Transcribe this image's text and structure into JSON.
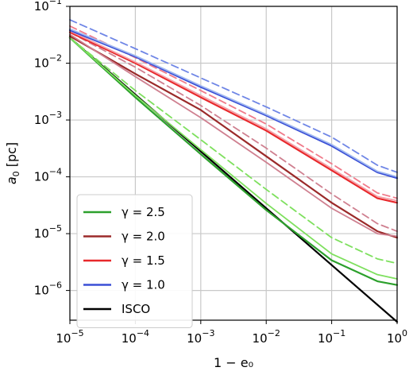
{
  "chart_data": {
    "type": "line",
    "xlabel": "1 − e₀",
    "ylabel_var": "a",
    "ylabel_sub": "0",
    "ylabel_unit": " [pc]",
    "xscale": "log",
    "yscale": "log",
    "xlim": [
      1e-05,
      1
    ],
    "ylim": [
      3e-07,
      0.1
    ],
    "grid": true,
    "legend_position": "lower-left",
    "x_ticks": [
      {
        "value": 1e-05,
        "base": "10",
        "exp": "−5"
      },
      {
        "value": 0.0001,
        "base": "10",
        "exp": "−4"
      },
      {
        "value": 0.001,
        "base": "10",
        "exp": "−3"
      },
      {
        "value": 0.01,
        "base": "10",
        "exp": "−2"
      },
      {
        "value": 0.1,
        "base": "10",
        "exp": "−1"
      },
      {
        "value": 1,
        "base": "10",
        "exp": "0"
      }
    ],
    "y_ticks": [
      {
        "value": 1e-06,
        "base": "10",
        "exp": "−6"
      },
      {
        "value": 1e-05,
        "base": "10",
        "exp": "−5"
      },
      {
        "value": 0.0001,
        "base": "10",
        "exp": "−4"
      },
      {
        "value": 0.001,
        "base": "10",
        "exp": "−3"
      },
      {
        "value": 0.01,
        "base": "10",
        "exp": "−2"
      },
      {
        "value": 0.1,
        "base": "10",
        "exp": "−1"
      }
    ],
    "legend": [
      {
        "label": "γ = 2.5",
        "color": "#2ca02c"
      },
      {
        "label": "γ = 2.0",
        "color": "#9b2a2a"
      },
      {
        "label": "γ = 1.5",
        "color": "#e8282b"
      },
      {
        "label": "γ = 1.0",
        "color": "#3a4fd6"
      },
      {
        "label": "ISCO",
        "color": "#000000"
      }
    ],
    "series": [
      {
        "color": "#000000",
        "style": "solid",
        "width": 2.2,
        "points": [
          [
            1e-05,
            0.028
          ],
          [
            1,
            2.8e-07
          ]
        ]
      },
      {
        "color": "#2ca02c",
        "style": "solid",
        "width": 2.2,
        "points": [
          [
            1e-05,
            0.028
          ],
          [
            0.0001,
            0.0025
          ],
          [
            0.001,
            0.00025
          ],
          [
            0.01,
            2.6e-05
          ],
          [
            0.1,
            3.4e-06
          ],
          [
            0.5,
            1.45e-06
          ],
          [
            1,
            1.25e-06
          ]
        ]
      },
      {
        "color": "#7ee05e",
        "style": "solid",
        "width": 1.8,
        "points": [
          [
            1e-05,
            0.028
          ],
          [
            0.0001,
            0.0027
          ],
          [
            0.001,
            0.0003
          ],
          [
            0.01,
            3.4e-05
          ],
          [
            0.1,
            4.4e-06
          ],
          [
            0.5,
            1.9e-06
          ],
          [
            1,
            1.6e-06
          ]
        ]
      },
      {
        "color": "#7ee05e",
        "style": "dashed",
        "width": 1.8,
        "points": [
          [
            1e-05,
            0.028
          ],
          [
            0.0001,
            0.0033
          ],
          [
            0.001,
            0.00045
          ],
          [
            0.01,
            6e-05
          ],
          [
            0.1,
            8.5e-06
          ],
          [
            0.5,
            3.6e-06
          ],
          [
            1,
            3e-06
          ]
        ]
      },
      {
        "color": "#9b2a2a",
        "style": "solid",
        "width": 2.2,
        "points": [
          [
            1e-05,
            0.03
          ],
          [
            0.0001,
            0.0065
          ],
          [
            0.001,
            0.0015
          ],
          [
            0.01,
            0.00023
          ],
          [
            0.1,
            3.5e-05
          ],
          [
            0.5,
            1.1e-05
          ],
          [
            1,
            8.5e-06
          ]
        ]
      },
      {
        "color": "#cf8090",
        "style": "solid",
        "width": 1.8,
        "points": [
          [
            1e-05,
            0.032
          ],
          [
            0.0001,
            0.0058
          ],
          [
            0.001,
            0.0011
          ],
          [
            0.01,
            0.00018
          ],
          [
            0.1,
            2.8e-05
          ],
          [
            0.5,
            1e-05
          ],
          [
            1,
            9e-06
          ]
        ]
      },
      {
        "color": "#cf8090",
        "style": "dashed",
        "width": 1.8,
        "points": [
          [
            1e-05,
            0.035
          ],
          [
            0.0001,
            0.0085
          ],
          [
            0.001,
            0.0018
          ],
          [
            0.01,
            0.00032
          ],
          [
            0.1,
            5e-05
          ],
          [
            0.5,
            1.5e-05
          ],
          [
            1,
            1.1e-05
          ]
        ]
      },
      {
        "color": "#e8282b",
        "style": "solid",
        "width": 2.2,
        "points": [
          [
            1e-05,
            0.035
          ],
          [
            0.0001,
            0.01
          ],
          [
            0.001,
            0.0025
          ],
          [
            0.01,
            0.00065
          ],
          [
            0.1,
            0.00013
          ],
          [
            0.5,
            4.2e-05
          ],
          [
            1,
            3.5e-05
          ]
        ]
      },
      {
        "color": "#f4a0a8",
        "style": "solid",
        "width": 1.8,
        "points": [
          [
            1e-05,
            0.037
          ],
          [
            0.0001,
            0.0105
          ],
          [
            0.001,
            0.0027
          ],
          [
            0.01,
            0.0007
          ],
          [
            0.1,
            0.00014
          ],
          [
            0.5,
            4.5e-05
          ],
          [
            1,
            3.8e-05
          ]
        ]
      },
      {
        "color": "#f07a8a",
        "style": "dashed",
        "width": 1.8,
        "points": [
          [
            1e-05,
            0.045
          ],
          [
            0.0001,
            0.0125
          ],
          [
            0.001,
            0.0033
          ],
          [
            0.01,
            0.00085
          ],
          [
            0.1,
            0.00017
          ],
          [
            0.5,
            5.2e-05
          ],
          [
            1,
            4.2e-05
          ]
        ]
      },
      {
        "color": "#3a4fd6",
        "style": "solid",
        "width": 2.2,
        "points": [
          [
            1e-05,
            0.038
          ],
          [
            0.0001,
            0.013
          ],
          [
            0.001,
            0.0038
          ],
          [
            0.01,
            0.0012
          ],
          [
            0.1,
            0.00035
          ],
          [
            0.5,
            0.00012
          ],
          [
            1,
            9.5e-05
          ]
        ]
      },
      {
        "color": "#a0b8f0",
        "style": "solid",
        "width": 1.8,
        "points": [
          [
            1e-05,
            0.04
          ],
          [
            0.0001,
            0.0135
          ],
          [
            0.001,
            0.004
          ],
          [
            0.01,
            0.00125
          ],
          [
            0.1,
            0.00037
          ],
          [
            0.5,
            0.000125
          ],
          [
            1,
            0.0001
          ]
        ]
      },
      {
        "color": "#6f86e6",
        "style": "dashed",
        "width": 1.8,
        "points": [
          [
            1e-05,
            0.058
          ],
          [
            0.0001,
            0.018
          ],
          [
            0.001,
            0.0055
          ],
          [
            0.01,
            0.0017
          ],
          [
            0.1,
            0.0005
          ],
          [
            0.5,
            0.00016
          ],
          [
            1,
            0.00012
          ]
        ]
      }
    ]
  }
}
